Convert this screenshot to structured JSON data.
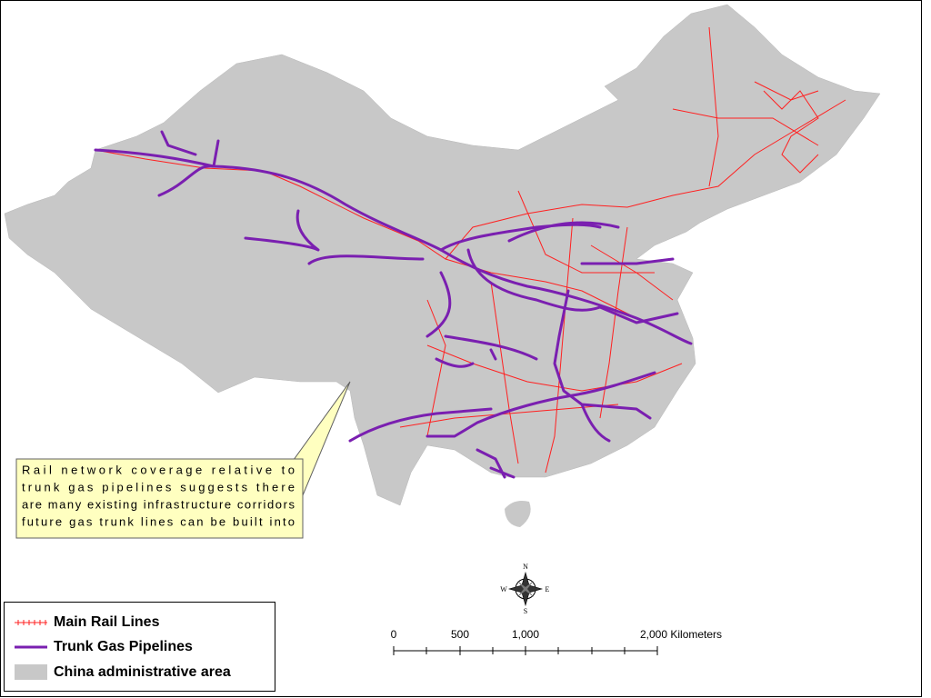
{
  "annotation": {
    "lines": [
      "Rail network coverage relative to",
      "trunk gas pipelines suggests there",
      "are many existing infrastructure corridors",
      "future gas trunk lines can be built into"
    ]
  },
  "legend": {
    "items": [
      "Main Rail Lines",
      "Trunk Gas Pipelines",
      "China administrative area"
    ]
  },
  "scale_bar": {
    "labels": [
      "0",
      "500",
      "1,000",
      "2,000 Kilometers"
    ]
  },
  "compass": {
    "north": "N",
    "east": "E",
    "south": "S",
    "west": "W"
  }
}
